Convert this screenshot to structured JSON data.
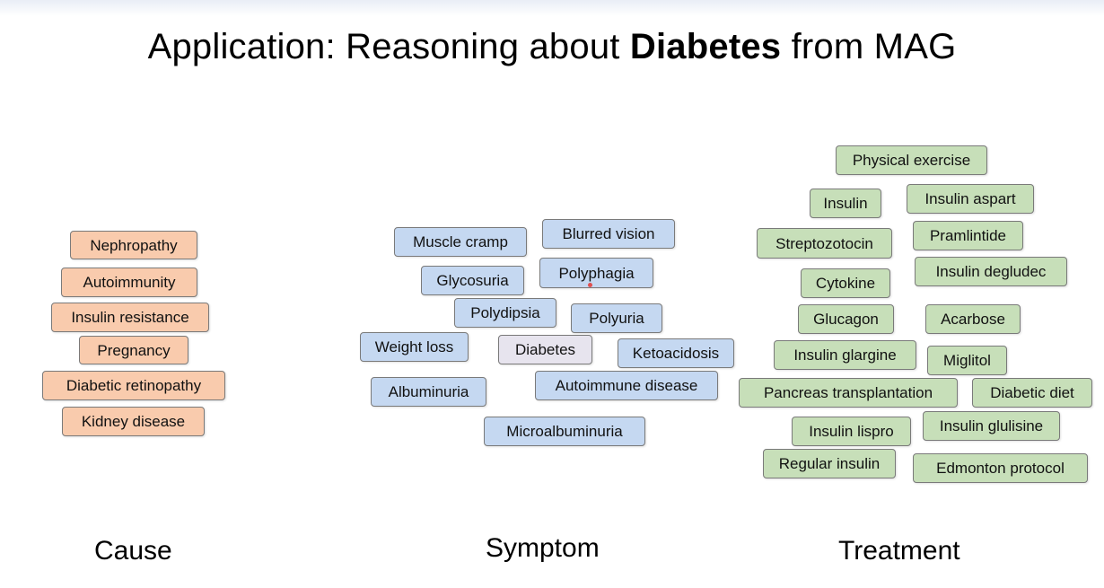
{
  "title": {
    "prefix": "Application: Reasoning about ",
    "bold": "Diabetes",
    "suffix": " from MAG"
  },
  "columns": {
    "cause": "Cause",
    "symptom": "Symptom",
    "treatment": "Treatment"
  },
  "cause_items": [
    "Nephropathy",
    "Autoimmunity",
    "Insulin resistance",
    "Pregnancy",
    "Diabetic retinopathy",
    "Kidney disease"
  ],
  "symptom_items": [
    "Muscle cramp",
    "Blurred vision",
    "Glycosuria",
    "Polyphagia",
    "Polydipsia",
    "Polyuria",
    "Weight loss",
    "Ketoacidosis",
    "Albuminuria",
    "Autoimmune disease",
    "Microalbuminuria"
  ],
  "center_item": "Diabetes",
  "treatment_items": [
    "Physical exercise",
    "Insulin",
    "Insulin aspart",
    "Streptozotocin",
    "Pramlintide",
    "Cytokine",
    "Insulin degludec",
    "Glucagon",
    "Acarbose",
    "Insulin glargine",
    "Miglitol",
    "Pancreas transplantation",
    "Diabetic diet",
    "Insulin lispro",
    "Insulin glulisine",
    "Regular insulin",
    "Edmonton protocol"
  ]
}
